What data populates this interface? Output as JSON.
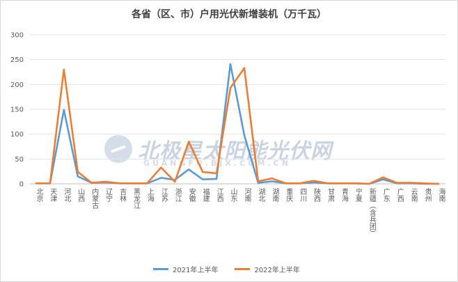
{
  "chart_data": {
    "type": "line",
    "title": "各省（区、市）户用光伏新增装机（万千瓦）",
    "ylim": [
      0,
      300
    ],
    "yticks": [
      0,
      50,
      100,
      150,
      200,
      250,
      300
    ],
    "grid": true,
    "legend_position": "bottom",
    "categories": [
      "北京",
      "天津",
      "河北",
      "山西",
      "内蒙古",
      "辽宁",
      "吉林",
      "黑龙江",
      "上海",
      "江苏",
      "浙江",
      "安徽",
      "福建",
      "江西",
      "山东",
      "河南",
      "湖北",
      "湖南",
      "重庆",
      "四川",
      "陕西",
      "甘肃",
      "青海",
      "宁夏",
      "新疆（含兵团）",
      "广东",
      "广西",
      "云南",
      "贵州",
      "海南"
    ],
    "series": [
      {
        "name": "2021年上半年",
        "color": "#5b9bd5",
        "values": [
          1,
          1,
          149,
          15,
          2,
          3,
          1,
          1,
          1,
          12,
          8,
          29,
          9,
          10,
          241,
          98,
          2,
          5,
          1,
          1,
          3,
          1,
          1,
          1,
          0,
          9,
          1,
          1,
          0,
          0
        ]
      },
      {
        "name": "2022年上半年",
        "color": "#ed7d31",
        "values": [
          1,
          1,
          230,
          24,
          2,
          4,
          1,
          1,
          1,
          33,
          4,
          85,
          24,
          21,
          193,
          233,
          5,
          11,
          1,
          1,
          6,
          1,
          1,
          1,
          0,
          13,
          2,
          2,
          1,
          0
        ]
      }
    ]
  },
  "watermark": {
    "text": "北极星太阳能光伏网",
    "sub": "GUANGFU.BJX.COM.CN"
  }
}
